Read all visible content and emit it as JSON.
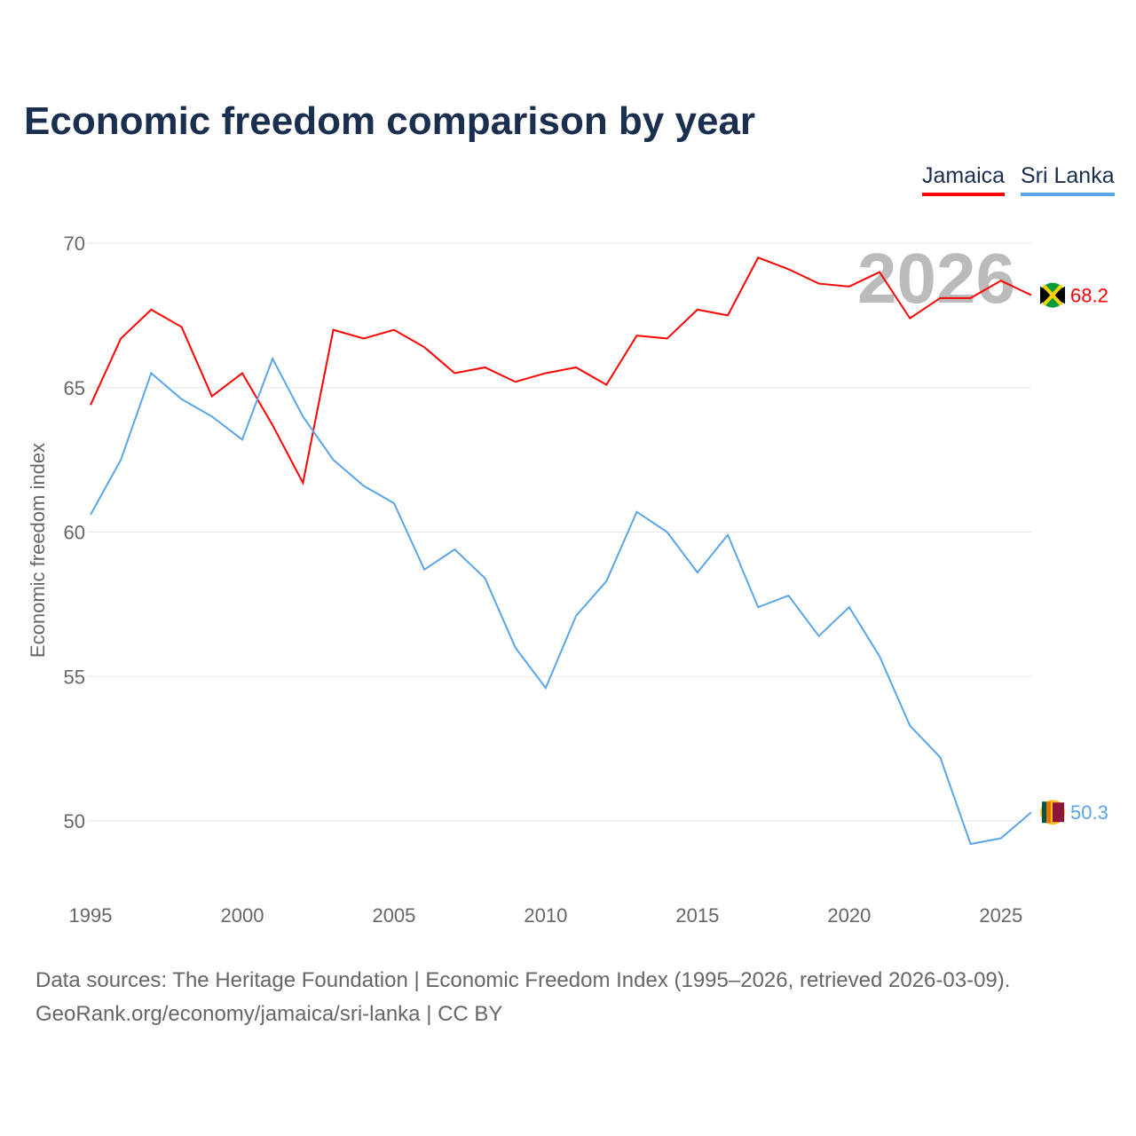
{
  "title": "Economic freedom comparison by year",
  "legend": [
    "Jamaica",
    "Sri Lanka"
  ],
  "source_line1": "Data sources: The Heritage Foundation | Economic Freedom Index (1995–2026, retrieved 2026-03-09).",
  "source_line2": "GeoRank.org/economy/jamaica/sri-lanka | CC BY",
  "year_watermark": "2026",
  "chart_data": {
    "type": "line",
    "title": "Economic freedom comparison by year",
    "xlabel": "",
    "ylabel": "Economic freedom index",
    "x": [
      1995,
      1996,
      1997,
      1998,
      1999,
      2000,
      2001,
      2002,
      2003,
      2004,
      2005,
      2006,
      2007,
      2008,
      2009,
      2010,
      2011,
      2012,
      2013,
      2014,
      2015,
      2016,
      2017,
      2018,
      2019,
      2020,
      2021,
      2022,
      2023,
      2024,
      2025,
      2026
    ],
    "xlim": [
      1995,
      2026
    ],
    "ylim": [
      47,
      71
    ],
    "xticks": [
      "1995",
      "2000",
      "2005",
      "2010",
      "2015",
      "2020",
      "2025"
    ],
    "yticks": [
      "50",
      "55",
      "60",
      "65",
      "70"
    ],
    "grid": true,
    "legend_position": "top-right",
    "series": [
      {
        "name": "Jamaica",
        "color": "#ff0000",
        "end_label": "68.2",
        "values": [
          64.4,
          66.7,
          67.7,
          67.1,
          64.7,
          65.5,
          63.7,
          61.7,
          67.0,
          66.7,
          67.0,
          66.4,
          65.5,
          65.7,
          65.2,
          65.5,
          65.7,
          65.1,
          66.8,
          66.7,
          67.7,
          67.5,
          69.5,
          69.1,
          68.6,
          68.5,
          69.0,
          67.4,
          68.1,
          68.1,
          68.7,
          68.2
        ]
      },
      {
        "name": "Sri Lanka",
        "color": "#5aa5ea",
        "end_label": "50.3",
        "values": [
          60.6,
          62.5,
          65.5,
          64.6,
          64.0,
          63.2,
          66.0,
          64.0,
          62.5,
          61.6,
          61.0,
          58.7,
          59.4,
          58.4,
          56.0,
          54.6,
          57.1,
          58.3,
          60.7,
          60.0,
          58.6,
          59.9,
          57.4,
          57.8,
          56.4,
          57.4,
          55.7,
          53.3,
          52.2,
          49.2,
          49.4,
          50.3
        ]
      }
    ]
  }
}
